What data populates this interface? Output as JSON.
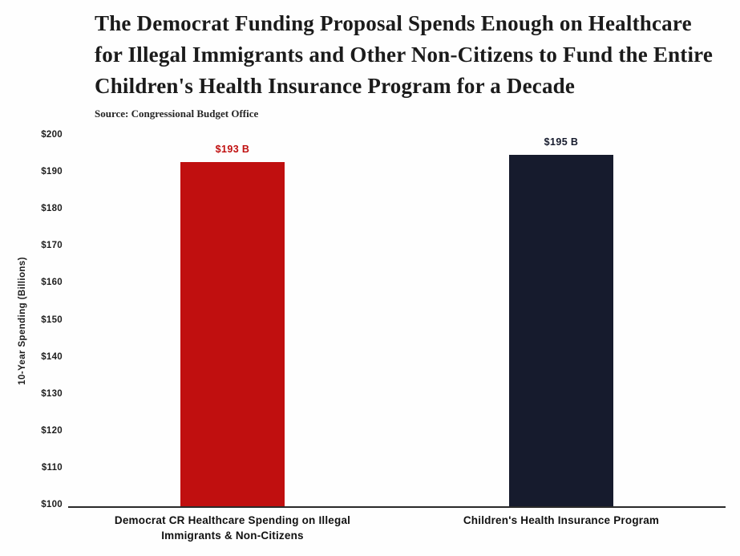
{
  "header": {
    "title_lines": [
      "The Democrat Funding Proposal Spends Enough on Healthcare",
      "for Illegal Immigrants and Other Non-Citizens to Fund the Entire",
      "Children's Health Insurance Program for a Decade"
    ],
    "source": "Source: Congressional Budget Office"
  },
  "chart_data": {
    "type": "bar",
    "title": "The Democrat Funding Proposal Spends Enough on Healthcare for Illegal Immigrants and Other Non-Citizens to Fund the Entire Children's Health Insurance Program for a Decade",
    "subtitle": "Source: Congressional Budget Office",
    "xlabel": "",
    "ylabel": "10-Year Spending (Billions)",
    "ylim": [
      100,
      200
    ],
    "ytick_step": 10,
    "ytick_prefix": "$",
    "grid": false,
    "legend": false,
    "categories": [
      "Democrat CR Healthcare Spending on Illegal Immigrants & Non-Citizens",
      "Children's Health Insurance Program"
    ],
    "values": [
      193,
      195
    ],
    "value_labels": [
      "$193 B",
      "$195 B"
    ],
    "bar_colors": [
      "#c00f0f",
      "#161b2d"
    ],
    "value_label_colors": [
      "#c00f0f",
      "#161b2d"
    ]
  }
}
